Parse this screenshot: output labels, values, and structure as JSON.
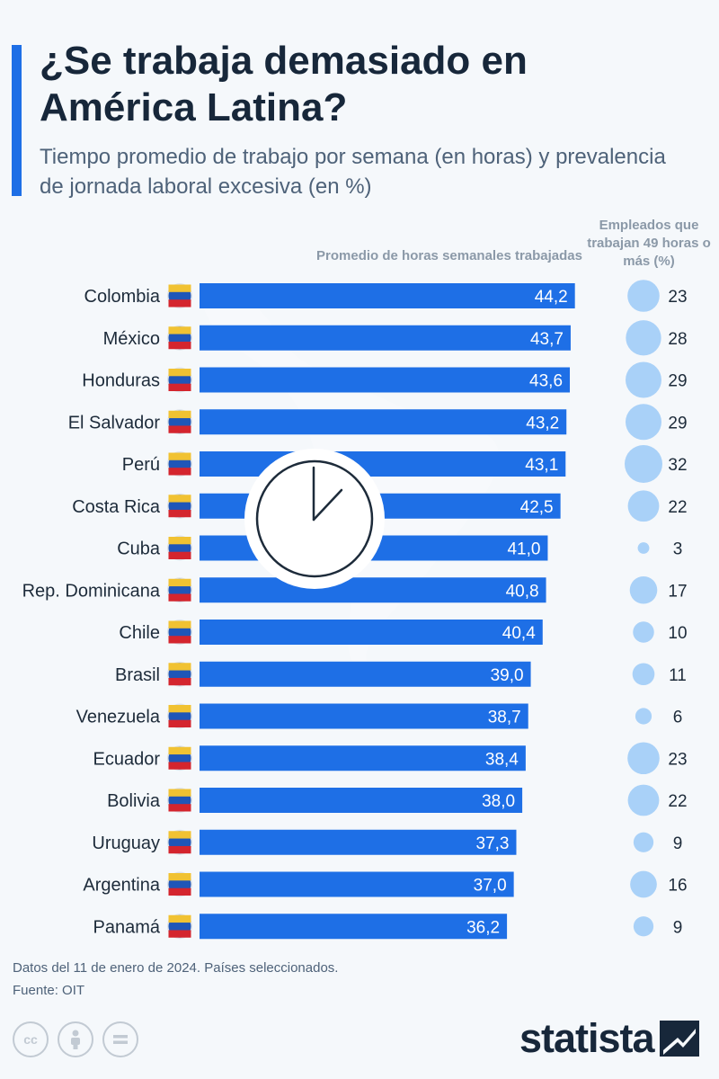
{
  "header": {
    "title": "¿Se trabaja demasiado en América Latina?",
    "subtitle": "Tiempo promedio de trabajo por semana (en horas) y prevalencia de jornada laboral excesiva (en %)"
  },
  "colors": {
    "accent": "#1e6fe6",
    "bar": "#1e6fe6",
    "bubble": "#a9d1f8",
    "background": "#f5f8fb",
    "title": "#17273a",
    "muted": "#8b99a8"
  },
  "chart_data": {
    "type": "bar",
    "orientation": "horizontal",
    "bar_header": "Promedio de horas semanales trabajadas",
    "bubble_header": "Empleados que trabajan 49 horas o más (%)",
    "categories": [
      "Colombia",
      "México",
      "Honduras",
      "El Salvador",
      "Perú",
      "Costa Rica",
      "Cuba",
      "Rep. Dominicana",
      "Chile",
      "Brasil",
      "Venezuela",
      "Ecuador",
      "Bolivia",
      "Uruguay",
      "Argentina",
      "Panamá"
    ],
    "series": [
      {
        "values": [
          44.2,
          43.7,
          43.6,
          43.2,
          43.1,
          42.5,
          41.0,
          40.8,
          40.4,
          39.0,
          38.7,
          38.4,
          38.0,
          37.3,
          37.0,
          36.2
        ]
      },
      {
        "values": [
          23,
          28,
          29,
          29,
          32,
          22,
          3,
          17,
          10,
          11,
          6,
          23,
          22,
          9,
          16,
          9
        ]
      }
    ],
    "bar_labels": [
      "44,2",
      "43,7",
      "43,6",
      "43,2",
      "43,1",
      "42,5",
      "41,0",
      "40,8",
      "40,4",
      "39,0",
      "38,7",
      "38,4",
      "38,0",
      "37,3",
      "37,0",
      "36,2"
    ],
    "decimal_separator": ",",
    "grid": false,
    "legend": "none"
  },
  "flags": [
    "flag-colombia-icon",
    "flag-mexico-icon",
    "flag-honduras-icon",
    "flag-el-salvador-icon",
    "flag-peru-icon",
    "flag-costa-rica-icon",
    "flag-cuba-icon",
    "flag-dominican-republic-icon",
    "flag-chile-icon",
    "flag-brazil-icon",
    "flag-venezuela-icon",
    "flag-ecuador-icon",
    "flag-bolivia-icon",
    "flag-uruguay-icon",
    "flag-argentina-icon",
    "flag-panama-icon"
  ],
  "decorations": [
    "americas-map-silhouette",
    "clock-icon"
  ],
  "footer": {
    "note": "Datos del 11 de enero de 2024. Países seleccionados.",
    "source": "Fuente: OIT",
    "brand": "statista",
    "license_icons": [
      "creative-commons-icon",
      "attribution-icon",
      "no-derivatives-icon"
    ],
    "cc_label": "cc"
  }
}
